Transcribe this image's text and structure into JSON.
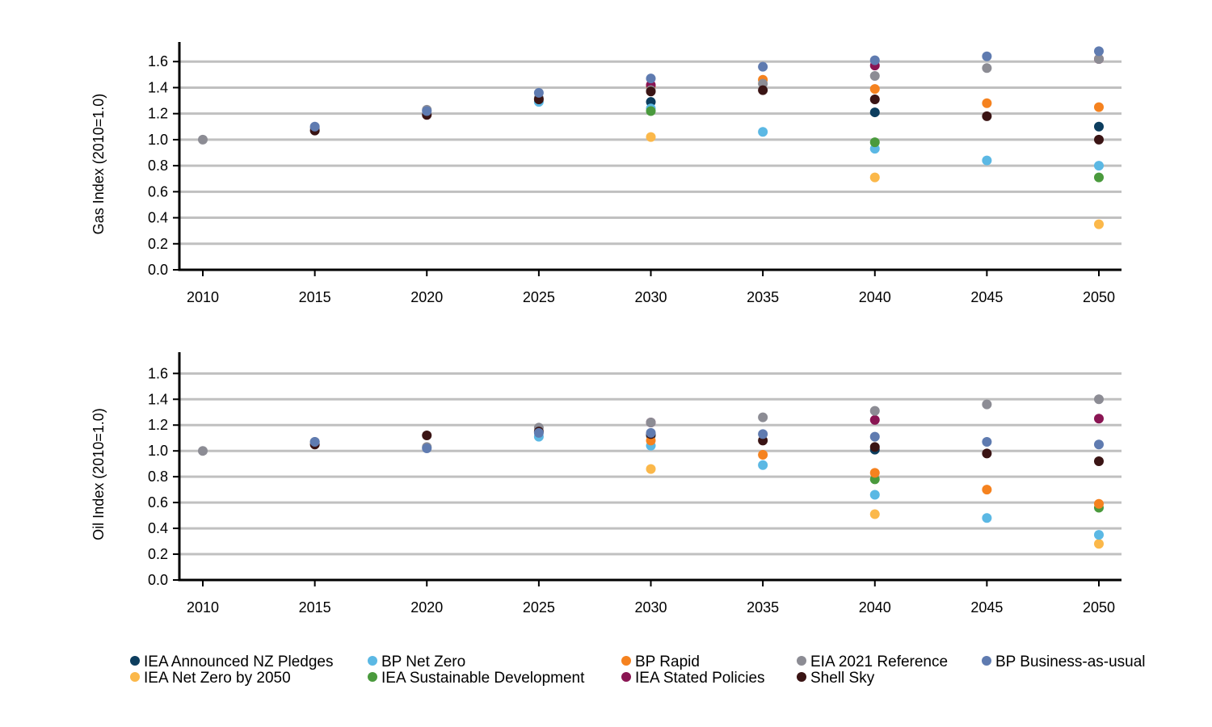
{
  "chart_data": [
    {
      "type": "scatter",
      "ylabel": "Gas Index (2010=1.0)",
      "xlabel": "",
      "title": "",
      "xlim": [
        2010,
        2050
      ],
      "ylim": [
        0,
        1.7
      ],
      "x_ticks": [
        "2010",
        "2015",
        "2020",
        "2025",
        "2030",
        "2035",
        "2040",
        "2045",
        "2050"
      ],
      "y_ticks": [
        "0.0",
        "0.2",
        "0.4",
        "0.6",
        "0.8",
        "1.0",
        "1.2",
        "1.4",
        "1.6"
      ],
      "grid": true,
      "series": [
        {
          "name": "IEA Announced NZ Pledges",
          "color": "#0c3d5e",
          "points": [
            [
              2030,
              1.29
            ],
            [
              2040,
              1.21
            ],
            [
              2050,
              1.1
            ]
          ]
        },
        {
          "name": "IEA Net Zero by 2050",
          "color": "#fbb84a",
          "points": [
            [
              2030,
              1.02
            ],
            [
              2040,
              0.71
            ],
            [
              2050,
              0.35
            ]
          ]
        },
        {
          "name": "BP Net Zero",
          "color": "#5bb8e4",
          "points": [
            [
              2025,
              1.29
            ],
            [
              2030,
              1.24
            ],
            [
              2035,
              1.06
            ],
            [
              2040,
              0.93
            ],
            [
              2045,
              0.84
            ],
            [
              2050,
              0.8
            ]
          ]
        },
        {
          "name": "IEA Sustainable Development",
          "color": "#4a9a3d",
          "points": [
            [
              2030,
              1.22
            ],
            [
              2040,
              0.98
            ],
            [
              2050,
              0.71
            ]
          ]
        },
        {
          "name": "BP Rapid",
          "color": "#f5821f",
          "points": [
            [
              2030,
              1.41
            ],
            [
              2035,
              1.46
            ],
            [
              2040,
              1.39
            ],
            [
              2045,
              1.28
            ],
            [
              2050,
              1.25
            ]
          ]
        },
        {
          "name": "IEA Stated Policies",
          "color": "#8a1553",
          "points": [
            [
              2030,
              1.42
            ],
            [
              2040,
              1.57
            ],
            [
              2050,
              1.62
            ]
          ]
        },
        {
          "name": "EIA 2021 Reference",
          "color": "#8c8c94",
          "points": [
            [
              2010,
              1.0
            ],
            [
              2015,
              1.09
            ],
            [
              2020,
              1.23
            ],
            [
              2025,
              1.32
            ],
            [
              2030,
              1.38
            ],
            [
              2035,
              1.43
            ],
            [
              2040,
              1.49
            ],
            [
              2045,
              1.55
            ],
            [
              2050,
              1.62
            ]
          ]
        },
        {
          "name": "Shell Sky",
          "color": "#3a1414",
          "points": [
            [
              2015,
              1.07
            ],
            [
              2020,
              1.19
            ],
            [
              2025,
              1.31
            ],
            [
              2030,
              1.37
            ],
            [
              2035,
              1.38
            ],
            [
              2040,
              1.31
            ],
            [
              2045,
              1.18
            ],
            [
              2050,
              1.0
            ]
          ]
        },
        {
          "name": "BP Business-as-usual",
          "color": "#5f7bb0",
          "points": [
            [
              2015,
              1.1
            ],
            [
              2020,
              1.22
            ],
            [
              2025,
              1.36
            ],
            [
              2030,
              1.47
            ],
            [
              2035,
              1.56
            ],
            [
              2040,
              1.61
            ],
            [
              2045,
              1.64
            ],
            [
              2050,
              1.68
            ]
          ]
        }
      ]
    },
    {
      "type": "scatter",
      "ylabel": "Oil Index (2010=1.0)",
      "xlabel": "",
      "title": "",
      "xlim": [
        2010,
        2050
      ],
      "ylim": [
        0,
        1.7
      ],
      "x_ticks": [
        "2010",
        "2015",
        "2020",
        "2025",
        "2030",
        "2035",
        "2040",
        "2045",
        "2050"
      ],
      "y_ticks": [
        "0.0",
        "0.2",
        "0.4",
        "0.6",
        "0.8",
        "1.0",
        "1.2",
        "1.4",
        "1.6"
      ],
      "grid": true,
      "series": [
        {
          "name": "IEA Announced NZ Pledges",
          "color": "#0c3d5e",
          "points": [
            [
              2030,
              1.12
            ],
            [
              2040,
              1.01
            ]
          ]
        },
        {
          "name": "IEA Net Zero by 2050",
          "color": "#fbb84a",
          "points": [
            [
              2030,
              0.86
            ],
            [
              2040,
              0.51
            ],
            [
              2050,
              0.28
            ]
          ]
        },
        {
          "name": "BP Net Zero",
          "color": "#5bb8e4",
          "points": [
            [
              2025,
              1.11
            ],
            [
              2030,
              1.04
            ],
            [
              2035,
              0.89
            ],
            [
              2040,
              0.66
            ],
            [
              2045,
              0.48
            ],
            [
              2050,
              0.35
            ]
          ]
        },
        {
          "name": "IEA Sustainable Development",
          "color": "#4a9a3d",
          "points": [
            [
              2040,
              0.78
            ],
            [
              2050,
              0.56
            ]
          ]
        },
        {
          "name": "BP Rapid",
          "color": "#f5821f",
          "points": [
            [
              2030,
              1.08
            ],
            [
              2035,
              0.97
            ],
            [
              2040,
              0.83
            ],
            [
              2045,
              0.7
            ],
            [
              2050,
              0.59
            ]
          ]
        },
        {
          "name": "IEA Stated Policies",
          "color": "#8a1553",
          "points": [
            [
              2030,
              1.22
            ],
            [
              2040,
              1.24
            ],
            [
              2050,
              1.25
            ]
          ]
        },
        {
          "name": "EIA 2021 Reference",
          "color": "#8c8c94",
          "points": [
            [
              2010,
              1.0
            ],
            [
              2015,
              1.07
            ],
            [
              2020,
              1.03
            ],
            [
              2025,
              1.18
            ],
            [
              2030,
              1.22
            ],
            [
              2035,
              1.26
            ],
            [
              2040,
              1.31
            ],
            [
              2045,
              1.36
            ],
            [
              2050,
              1.4
            ]
          ]
        },
        {
          "name": "Shell Sky",
          "color": "#3a1414",
          "points": [
            [
              2015,
              1.05
            ],
            [
              2020,
              1.12
            ],
            [
              2025,
              1.15
            ],
            [
              2030,
              1.13
            ],
            [
              2035,
              1.08
            ],
            [
              2040,
              1.03
            ],
            [
              2045,
              0.98
            ],
            [
              2050,
              0.92
            ]
          ]
        },
        {
          "name": "BP Business-as-usual",
          "color": "#5f7bb0",
          "points": [
            [
              2015,
              1.07
            ],
            [
              2020,
              1.02
            ],
            [
              2025,
              1.14
            ],
            [
              2030,
              1.14
            ],
            [
              2035,
              1.13
            ],
            [
              2040,
              1.11
            ],
            [
              2045,
              1.07
            ],
            [
              2050,
              1.05
            ]
          ]
        }
      ]
    }
  ],
  "legend": {
    "placement": "bottom",
    "items": [
      {
        "label": "IEA Announced NZ Pledges",
        "color": "#0c3d5e"
      },
      {
        "label": "IEA Net Zero by 2050",
        "color": "#fbb84a"
      },
      {
        "label": "BP Net Zero",
        "color": "#5bb8e4"
      },
      {
        "label": "IEA Sustainable Development",
        "color": "#4a9a3d"
      },
      {
        "label": "BP Rapid",
        "color": "#f5821f"
      },
      {
        "label": "IEA Stated Policies",
        "color": "#8a1553"
      },
      {
        "label": "EIA 2021 Reference",
        "color": "#8c8c94"
      },
      {
        "label": "Shell Sky",
        "color": "#3a1414"
      },
      {
        "label": "BP Business-as-usual",
        "color": "#5f7bb0"
      }
    ]
  }
}
